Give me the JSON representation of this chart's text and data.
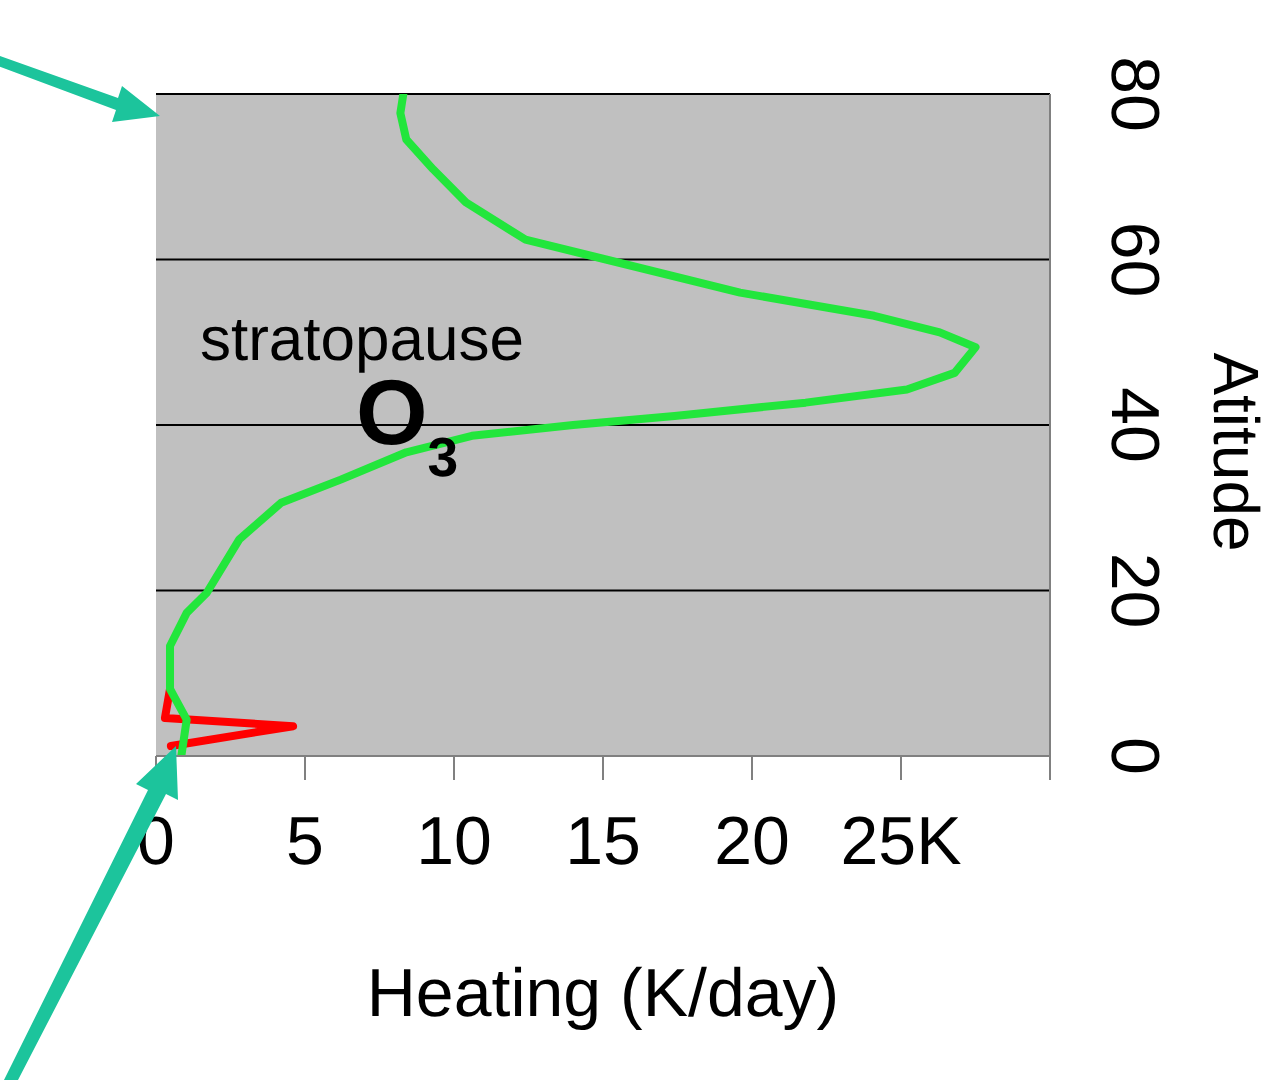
{
  "chart_data": {
    "type": "line",
    "xlabel": "Heating (K/day)",
    "ylabel": "Atitude",
    "xlim": [
      0,
      30
    ],
    "xticks": [
      0,
      5,
      10,
      15,
      20,
      {
        "value": 25,
        "label": "25K"
      },
      {
        "value": 30,
        "label": null
      }
    ],
    "ylim": [
      0,
      80
    ],
    "yticks": [
      0,
      20,
      40,
      60,
      80
    ],
    "grid": "y",
    "line_style": "solid",
    "series": [
      {
        "color": "#ff0000",
        "x": [
          0.5,
          4.6,
          0.3,
          0.47
        ],
        "values": [
          1.2,
          3.6,
          4.6,
          8.1
        ]
      },
      {
        "color": "#22e63c",
        "x": [
          0.85,
          1.03,
          0.47,
          0.47,
          1.03,
          1.7,
          2.8,
          4.2,
          6.2,
          8.4,
          10.6,
          14.0,
          17.4,
          21.8,
          25.2,
          26.8,
          27.5,
          26.3,
          24.1,
          19.6,
          15.1,
          12.4,
          10.4,
          9.3,
          8.4,
          8.2,
          8.3
        ],
        "values": [
          0,
          4.4,
          8.1,
          13.3,
          17.3,
          19.7,
          26.2,
          30.6,
          33.4,
          36.7,
          38.7,
          40.0,
          41.1,
          42.7,
          44.3,
          46.3,
          49.4,
          51.2,
          53.2,
          56.0,
          60.0,
          62.4,
          66.9,
          70.9,
          74.5,
          77.7,
          80
        ]
      }
    ],
    "annotations": [
      "stratopause",
      "O$_{3}$"
    ]
  }
}
